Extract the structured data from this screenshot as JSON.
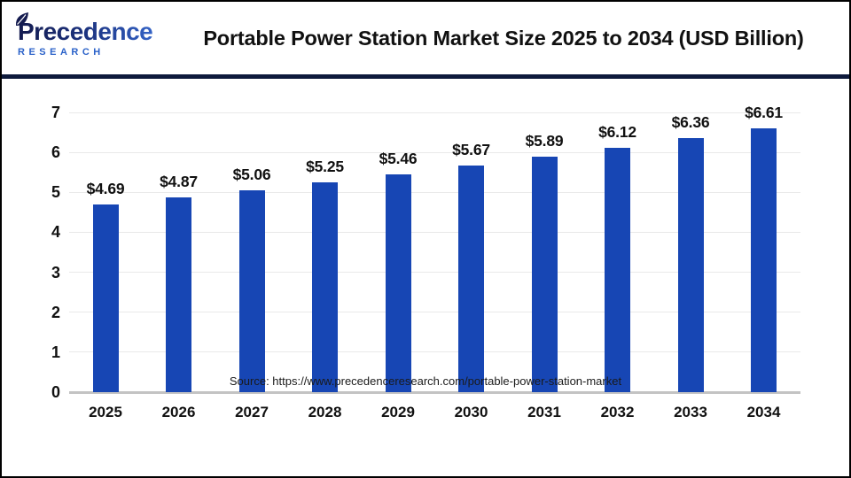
{
  "header": {
    "logo": {
      "name": "Precedence",
      "sub": "RESEARCH"
    },
    "title": "Portable Power Station Market Size 2025 to 2034 (USD Billion)"
  },
  "footer": {
    "source": "Source: https://www.precedenceresearch.com/portable-power-station-market"
  },
  "colors": {
    "bar": "#1746b4",
    "divider": "#0e1a3c",
    "baseline": "#c3c3c3",
    "gridline": "#e9e9e9",
    "logo_navy": "#141b4f",
    "logo_blue": "#2b62c9"
  },
  "chart_data": {
    "type": "bar",
    "title": "Portable Power Station Market Size 2025 to 2034 (USD Billion)",
    "categories": [
      "2025",
      "2026",
      "2027",
      "2028",
      "2029",
      "2030",
      "2031",
      "2032",
      "2033",
      "2034"
    ],
    "values": [
      4.69,
      4.87,
      5.06,
      5.25,
      5.46,
      5.67,
      5.89,
      6.12,
      6.36,
      6.61
    ],
    "data_labels": [
      "$4.69",
      "$4.87",
      "$5.06",
      "$5.25",
      "$5.46",
      "$5.67",
      "$5.89",
      "$6.12",
      "$6.36",
      "$6.61"
    ],
    "xlabel": "",
    "ylabel": "",
    "ylim": [
      0,
      7
    ],
    "yticks": [
      0,
      1,
      2,
      3,
      4,
      5,
      6,
      7
    ],
    "grid": true,
    "legend": false,
    "bar_color": "#1746b4"
  }
}
